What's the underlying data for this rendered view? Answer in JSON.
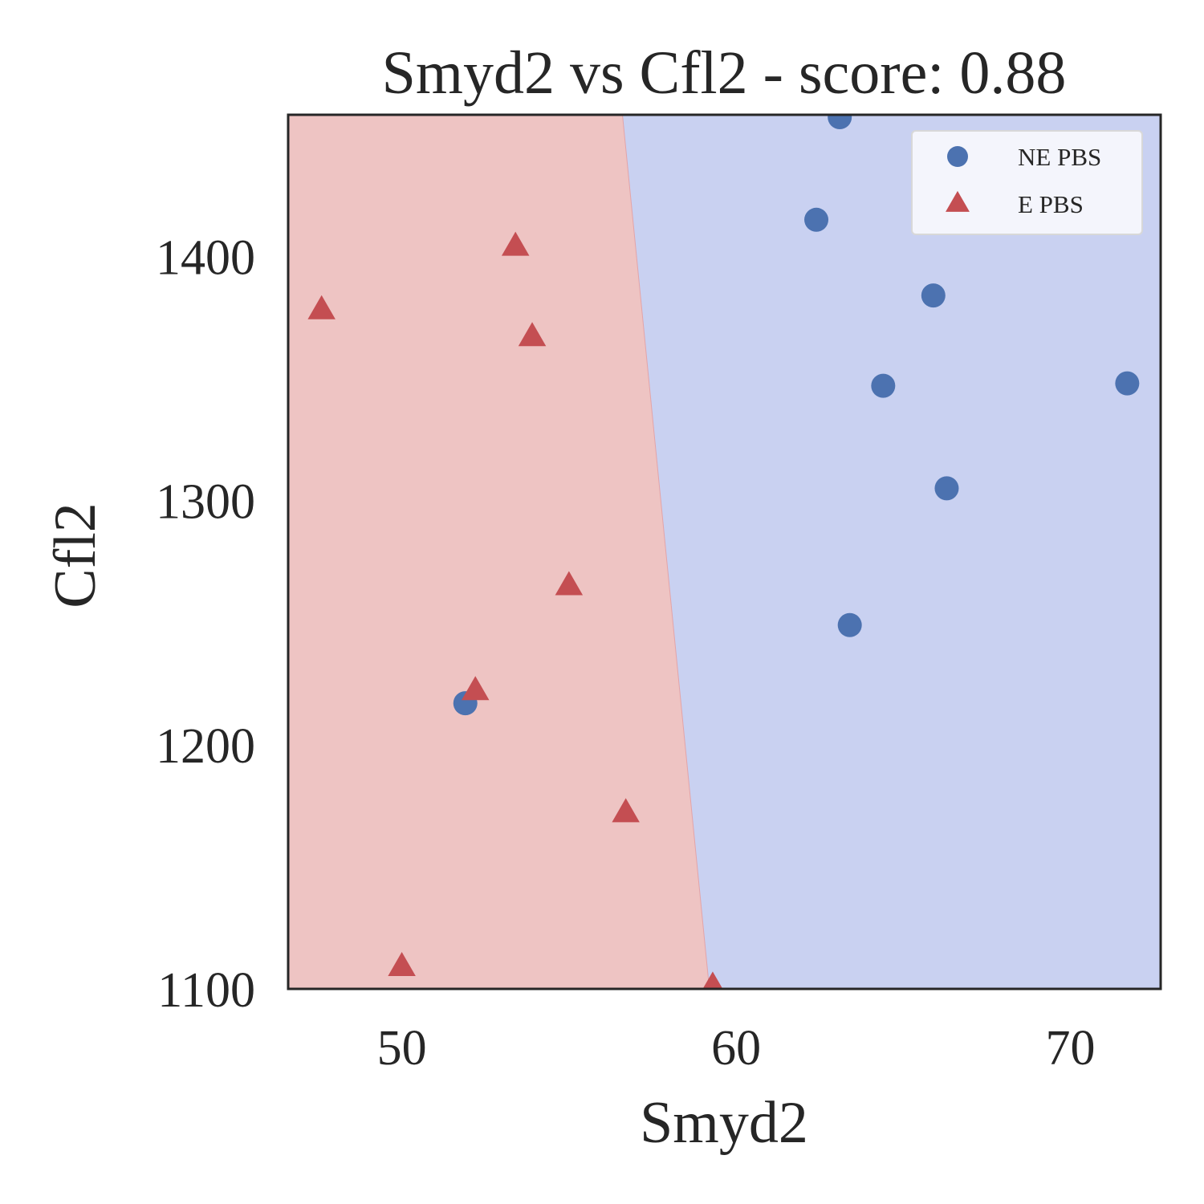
{
  "chart_data": {
    "type": "scatter",
    "title": "Smyd2 vs Cfl2 - score: 0.88",
    "xlabel": "Smyd2",
    "ylabel": "Cfl2",
    "xlim": [
      46.6,
      72.7
    ],
    "ylim": [
      1100,
      1458
    ],
    "xticks": [
      50,
      60,
      70
    ],
    "yticks": [
      1100,
      1200,
      1300,
      1400
    ],
    "grid": false,
    "legend_position": "top-right",
    "decision_boundary": {
      "points": [
        [
          56.6,
          1458
        ],
        [
          59.2,
          1100
        ]
      ],
      "left_region_color": "#eec4c3",
      "right_region_color": "#c9d1f1"
    },
    "series": [
      {
        "name": "NE PBS",
        "marker": "circle",
        "color": "#4c72b0",
        "points": [
          [
            63.1,
            1457
          ],
          [
            62.4,
            1415
          ],
          [
            65.9,
            1384
          ],
          [
            64.4,
            1347
          ],
          [
            71.7,
            1348
          ],
          [
            66.3,
            1305
          ],
          [
            63.4,
            1249
          ],
          [
            51.9,
            1217
          ]
        ]
      },
      {
        "name": "E PBS",
        "marker": "triangle",
        "color": "#c44e52",
        "points": [
          [
            53.4,
            1404
          ],
          [
            47.6,
            1378
          ],
          [
            53.9,
            1367
          ],
          [
            55.0,
            1265
          ],
          [
            52.2,
            1222
          ],
          [
            56.7,
            1172
          ],
          [
            50.0,
            1109
          ],
          [
            59.3,
            1101
          ]
        ]
      }
    ]
  }
}
